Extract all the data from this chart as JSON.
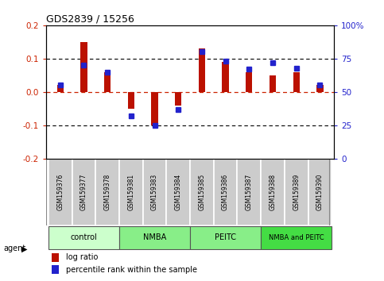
{
  "title": "GDS2839 / 15256",
  "samples": [
    "GSM159376",
    "GSM159377",
    "GSM159378",
    "GSM159381",
    "GSM159383",
    "GSM159384",
    "GSM159385",
    "GSM159386",
    "GSM159387",
    "GSM159388",
    "GSM159389",
    "GSM159390"
  ],
  "log_ratio": [
    0.02,
    0.15,
    0.06,
    -0.05,
    -0.1,
    -0.04,
    0.13,
    0.09,
    0.06,
    0.05,
    0.06,
    0.02
  ],
  "percentile_rank": [
    55,
    70,
    65,
    32,
    25,
    37,
    80,
    73,
    67,
    72,
    68,
    55
  ],
  "ylim_left": [
    -0.2,
    0.2
  ],
  "ylim_right": [
    0,
    100
  ],
  "yticks_left": [
    -0.2,
    -0.1,
    0.0,
    0.1,
    0.2
  ],
  "yticks_right": [
    0,
    25,
    50,
    75,
    100
  ],
  "ytick_labels_right": [
    "0",
    "25",
    "50",
    "75",
    "100%"
  ],
  "log_ratio_color": "#bb1100",
  "percentile_color": "#2222cc",
  "zero_line_color": "#cc2200",
  "agent_groups": [
    {
      "label": "control",
      "start": 0,
      "end": 3,
      "color": "#ccffcc"
    },
    {
      "label": "NMBA",
      "start": 3,
      "end": 6,
      "color": "#88ee88"
    },
    {
      "label": "PEITC",
      "start": 6,
      "end": 9,
      "color": "#88ee88"
    },
    {
      "label": "NMBA and PEITC",
      "start": 9,
      "end": 12,
      "color": "#44dd44"
    }
  ],
  "legend_log_ratio": "log ratio",
  "legend_percentile": "percentile rank within the sample",
  "agent_label": "agent",
  "bg_color": "#ffffff",
  "tick_label_color_left": "#cc2200",
  "tick_label_color_right": "#2222cc",
  "bar_width": 0.28,
  "marker_size": 28
}
